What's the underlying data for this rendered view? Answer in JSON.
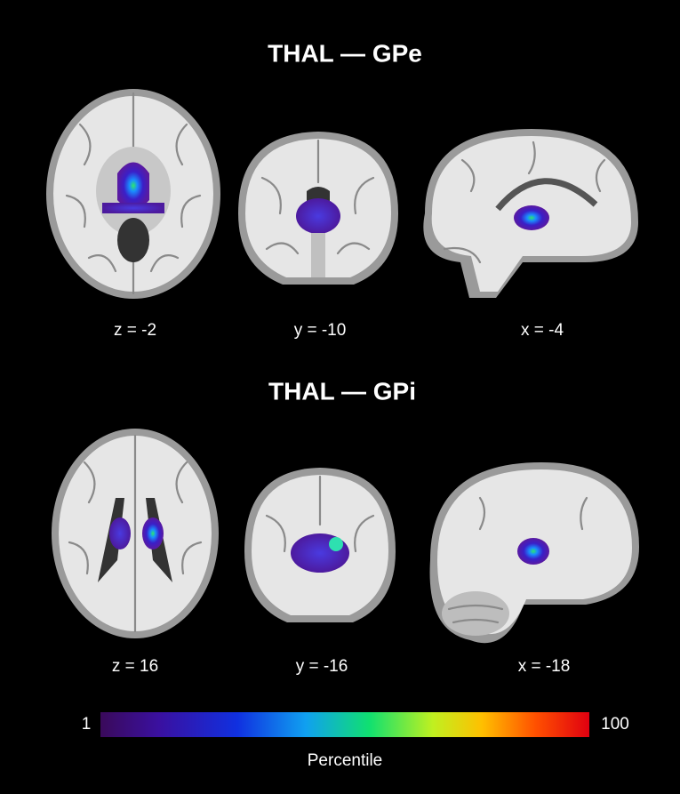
{
  "figure": {
    "panels": [
      {
        "title": "THAL — GPe",
        "slices": [
          "z = -2",
          "y = -10",
          "x = -4"
        ]
      },
      {
        "title": "THAL — GPi",
        "slices": [
          "z = 16",
          "y = -16",
          "x = -18"
        ]
      }
    ],
    "colorbar": {
      "min": 1,
      "max": 100,
      "label": "Percentile"
    }
  }
}
